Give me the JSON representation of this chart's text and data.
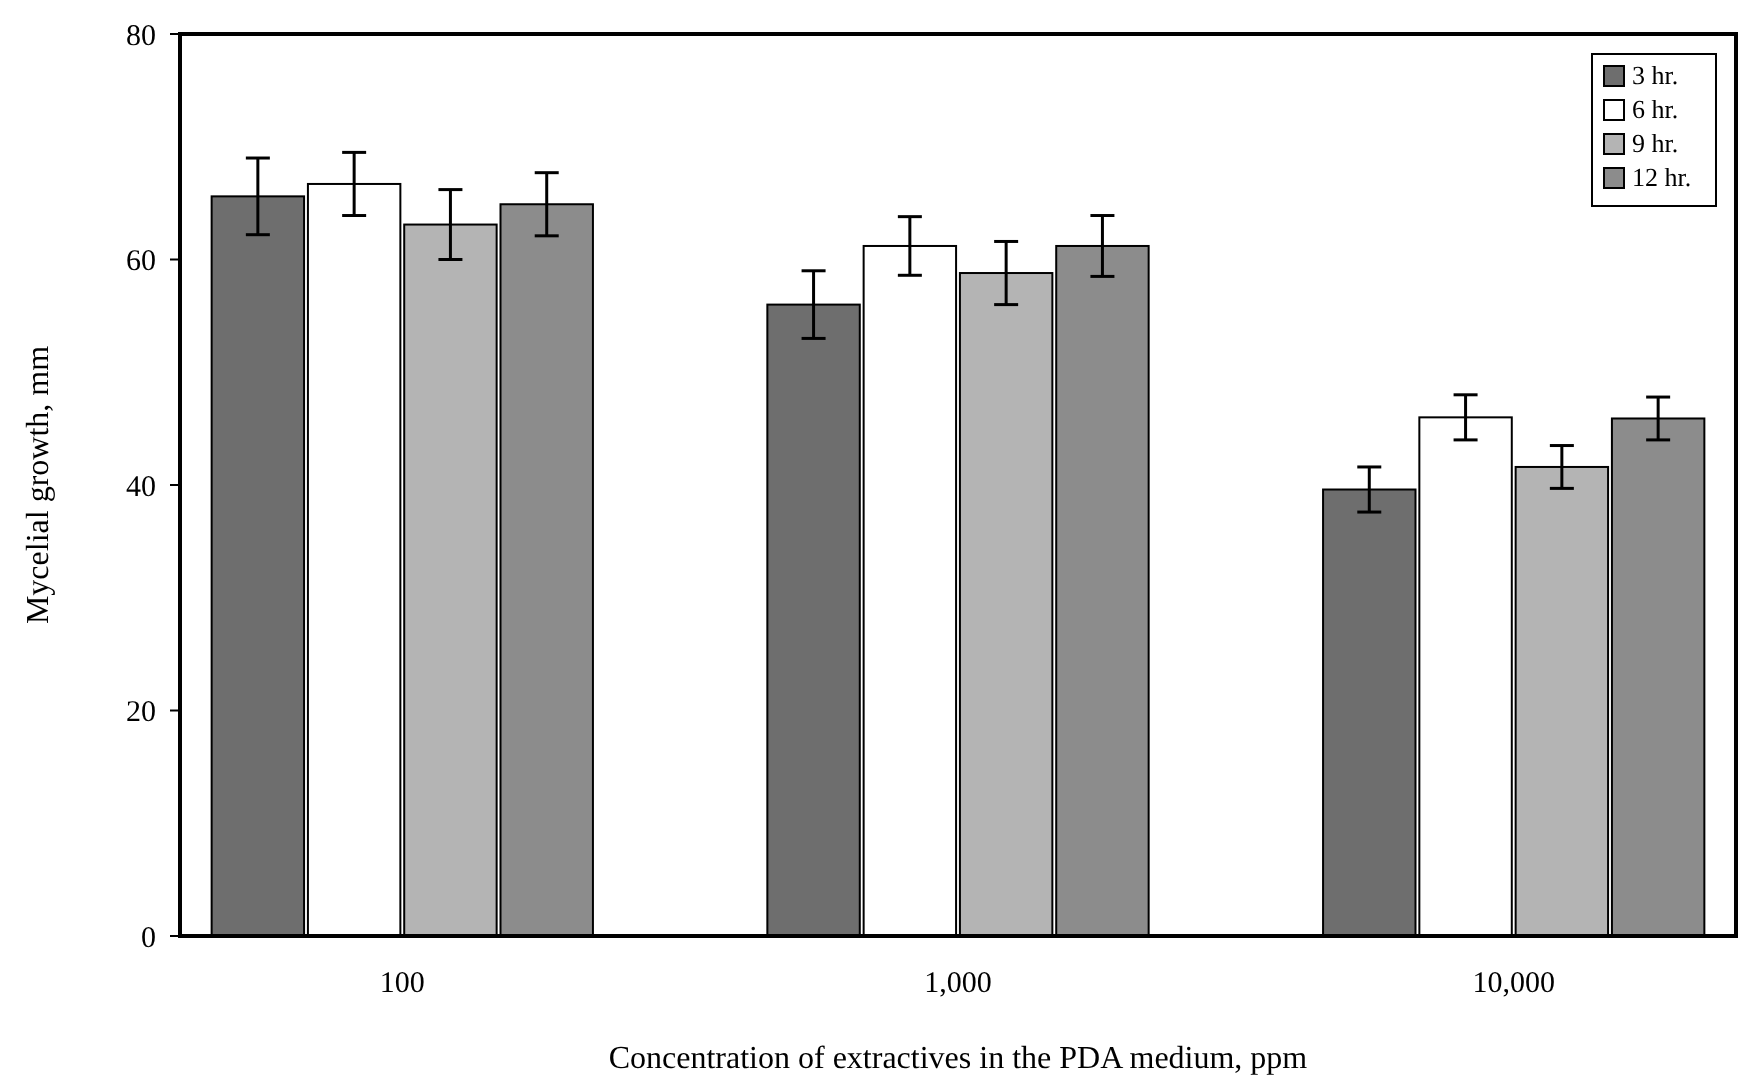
{
  "chart_data": {
    "type": "bar",
    "xlabel": "Concentration of extractives in the PDA medium, ppm",
    "ylabel": "Mycelial growth, mm",
    "categories": [
      "100",
      "1,000",
      "10,000"
    ],
    "series": [
      {
        "name": "3 hr.",
        "color": "#6e6e6e",
        "values": [
          65.6,
          56,
          39.6
        ],
        "errors": [
          3.4,
          3,
          2
        ]
      },
      {
        "name": "6 hr.",
        "color": "#ffffff",
        "values": [
          66.7,
          61.2,
          46
        ],
        "errors": [
          2.8,
          2.6,
          2
        ]
      },
      {
        "name": "9 hr.",
        "color": "#b4b4b4",
        "values": [
          63.1,
          58.8,
          41.6
        ],
        "errors": [
          3.1,
          2.8,
          1.9
        ]
      },
      {
        "name": "12 hr.",
        "color": "#8c8c8c",
        "values": [
          64.9,
          61.2,
          45.9
        ],
        "errors": [
          2.8,
          2.7,
          1.9
        ]
      }
    ],
    "ylim": [
      0,
      80
    ],
    "yticks": [
      0,
      20,
      40,
      60,
      80
    ],
    "legend": "top right"
  }
}
